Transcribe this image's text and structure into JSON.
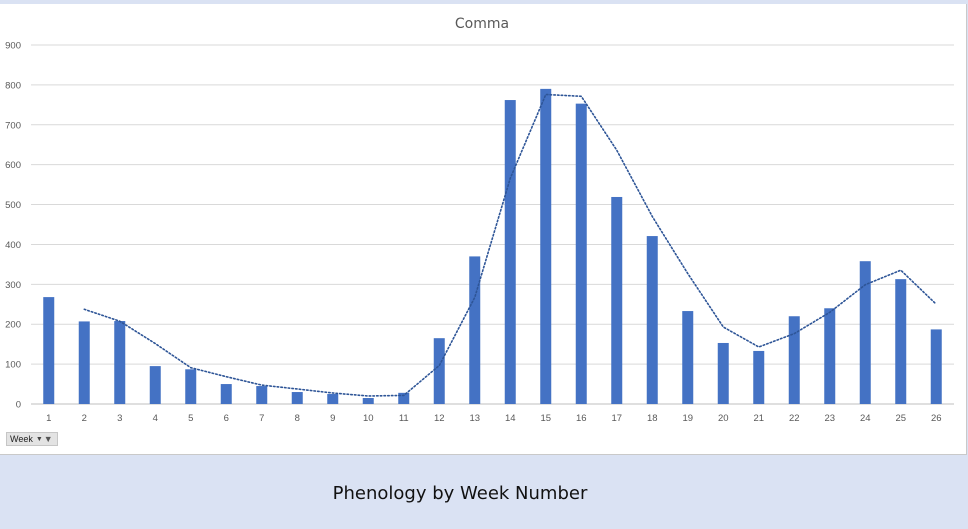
{
  "chart_data": {
    "type": "bar",
    "title": "Comma",
    "categories": [
      "1",
      "2",
      "3",
      "4",
      "5",
      "6",
      "7",
      "8",
      "9",
      "10",
      "11",
      "12",
      "13",
      "14",
      "15",
      "16",
      "17",
      "18",
      "19",
      "20",
      "21",
      "22",
      "23",
      "24",
      "25",
      "26"
    ],
    "values": [
      268,
      207,
      208,
      95,
      87,
      50,
      45,
      30,
      25,
      15,
      28,
      165,
      370,
      762,
      790,
      753,
      519,
      421,
      233,
      153,
      133,
      220,
      240,
      358,
      313,
      187
    ],
    "trendline": {
      "type": "moving-average",
      "period": 2,
      "style": "dotted"
    },
    "ylim": [
      0,
      900
    ],
    "yticks": [
      0,
      100,
      200,
      300,
      400,
      500,
      600,
      700,
      800,
      900
    ],
    "grid": true,
    "legend": "none",
    "colors": {
      "bar": "#4472c4",
      "trendline": "#2e5597",
      "grid": "#d9d9d9"
    }
  },
  "field_button": {
    "label": "Week"
  },
  "caption": "Phenology by Week Number"
}
